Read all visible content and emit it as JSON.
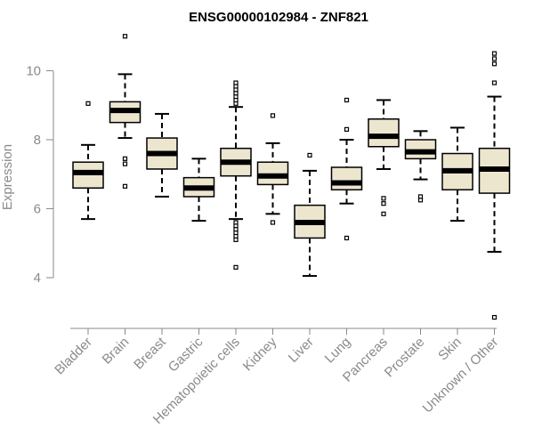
{
  "chart_data": {
    "type": "box",
    "title": "ENSG00000102984 - ZNF821",
    "xlabel": "",
    "ylabel": "Expression",
    "ylim": [
      2.7,
      11.0
    ],
    "yticks": [
      4,
      6,
      8,
      10
    ],
    "colors": {
      "box_fill": "#ede6cf",
      "box_stroke": "#000000",
      "median": "#000000",
      "axis": "#8a8a8a"
    },
    "categories": [
      "Bladder",
      "Brain",
      "Breast",
      "Gastric",
      "Hematopoietic cells",
      "Kidney",
      "Liver",
      "Lung",
      "Pancreas",
      "Prostate",
      "Skin",
      "Unknown / Other"
    ],
    "boxes": [
      {
        "name": "Bladder",
        "q1": 6.6,
        "median": 7.05,
        "q3": 7.35,
        "whisker_low": 5.7,
        "whisker_high": 7.85,
        "outliers": [
          9.05
        ]
      },
      {
        "name": "Brain",
        "q1": 8.5,
        "median": 8.85,
        "q3": 9.1,
        "whisker_low": 8.05,
        "whisker_high": 9.9,
        "outliers": [
          11.0,
          7.45,
          7.3,
          6.65
        ]
      },
      {
        "name": "Breast",
        "q1": 7.15,
        "median": 7.6,
        "q3": 8.05,
        "whisker_low": 6.35,
        "whisker_high": 8.75,
        "outliers": []
      },
      {
        "name": "Gastric",
        "q1": 6.35,
        "median": 6.6,
        "q3": 6.9,
        "whisker_low": 5.65,
        "whisker_high": 7.45,
        "outliers": []
      },
      {
        "name": "Hematopoietic cells",
        "q1": 6.95,
        "median": 7.35,
        "q3": 7.75,
        "whisker_low": 5.7,
        "whisker_high": 8.95,
        "outliers": [
          9.05,
          9.15,
          9.25,
          9.35,
          9.45,
          9.55,
          9.65,
          5.6,
          5.5,
          5.4,
          5.3,
          5.2,
          5.1,
          4.3
        ]
      },
      {
        "name": "Kidney",
        "q1": 6.7,
        "median": 6.95,
        "q3": 7.35,
        "whisker_low": 5.85,
        "whisker_high": 7.9,
        "outliers": [
          8.7,
          5.6
        ]
      },
      {
        "name": "Liver",
        "q1": 5.15,
        "median": 5.6,
        "q3": 6.1,
        "whisker_low": 4.05,
        "whisker_high": 7.1,
        "outliers": [
          7.55
        ]
      },
      {
        "name": "Lung",
        "q1": 6.55,
        "median": 6.75,
        "q3": 7.2,
        "whisker_low": 6.15,
        "whisker_high": 8.0,
        "outliers": [
          9.15,
          8.3,
          5.15
        ]
      },
      {
        "name": "Pancreas",
        "q1": 7.8,
        "median": 8.1,
        "q3": 8.6,
        "whisker_low": 7.15,
        "whisker_high": 9.15,
        "outliers": [
          6.3,
          6.15,
          5.85
        ]
      },
      {
        "name": "Prostate",
        "q1": 7.45,
        "median": 7.65,
        "q3": 8.0,
        "whisker_low": 6.85,
        "whisker_high": 8.25,
        "outliers": [
          6.35,
          6.25
        ]
      },
      {
        "name": "Skin",
        "q1": 6.55,
        "median": 7.1,
        "q3": 7.6,
        "whisker_low": 5.65,
        "whisker_high": 8.35,
        "outliers": []
      },
      {
        "name": "Unknown / Other",
        "q1": 6.45,
        "median": 7.15,
        "q3": 7.75,
        "whisker_low": 4.75,
        "whisker_high": 9.25,
        "outliers": [
          10.5,
          10.35,
          10.2,
          9.65,
          2.85
        ]
      }
    ]
  }
}
